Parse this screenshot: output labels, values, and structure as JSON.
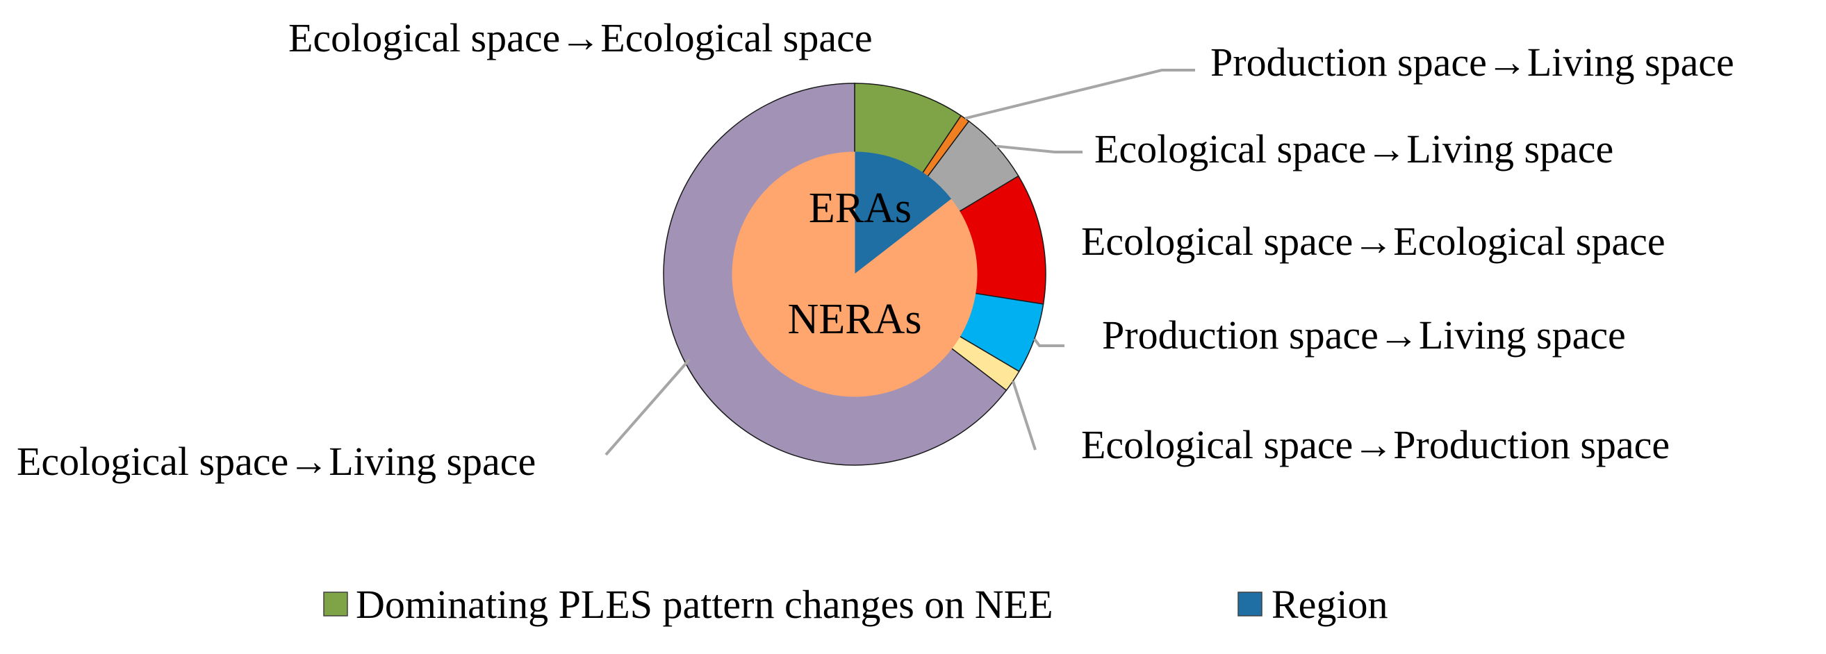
{
  "chart_data": {
    "type": "pie",
    "subtype": "doughnut-with-inner-pie",
    "title": "",
    "inner": {
      "series_name": "Region",
      "slices": [
        {
          "label": "ERAs",
          "value": 14.5,
          "color": "#1f6fa5"
        },
        {
          "label": "NERAs",
          "value": 85.5,
          "color": "#ffa56e"
        }
      ]
    },
    "outer": {
      "series_name": "Dominating PLES pattern changes on NEE",
      "slices": [
        {
          "label": "Ecological space→Ecological space",
          "value": 9.4,
          "color": "#7fa347"
        },
        {
          "label": "Production space→Living space",
          "value": 0.8,
          "color": "#f07f22"
        },
        {
          "label": "Ecological space→Living space",
          "value": 6.2,
          "color": "#a6a6a6"
        },
        {
          "label": "Ecological space→Ecological space",
          "value": 11.1,
          "color": "#e60000"
        },
        {
          "label": "Production space→Living space",
          "value": 6.0,
          "color": "#00b0f0"
        },
        {
          "label": "Ecological space→Production space",
          "value": 1.9,
          "color": "#ffe699"
        },
        {
          "label": "Ecological space→Living space",
          "value": 64.6,
          "color": "#a293b6"
        }
      ]
    },
    "legend": {
      "placement": "bottom",
      "entries": [
        {
          "label": "Dominating PLES pattern changes on NEE",
          "color": "#7fa347"
        },
        {
          "label": "Region",
          "color": "#1f6fa5"
        }
      ]
    },
    "leader_line_color": "#a6a6a6"
  }
}
